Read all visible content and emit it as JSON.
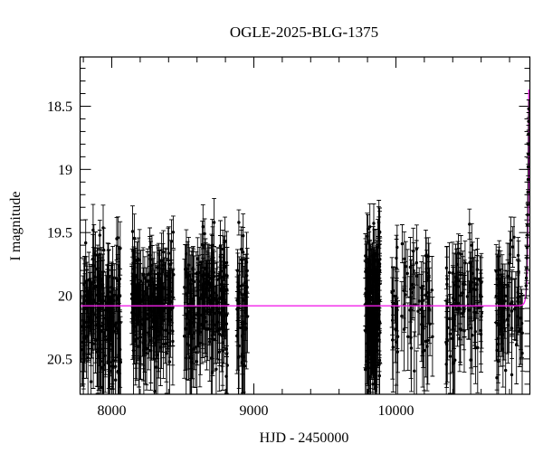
{
  "title": "OGLE-2025-BLG-1375",
  "chart_data": {
    "type": "scatter",
    "title": "OGLE-2025-BLG-1375",
    "xlabel": "HJD - 2450000",
    "ylabel": "I magnitude",
    "xlim": [
      7777,
      10943
    ],
    "ylim": [
      20.78,
      18.11
    ],
    "y_axis_inverted": true,
    "x_major_ticks": [
      8000,
      9000,
      10000
    ],
    "x_minor_step": 200,
    "y_major_ticks": [
      18.5,
      19,
      19.5,
      20,
      20.5
    ],
    "y_minor_step": 0.1,
    "grid": false,
    "legend": "none",
    "background_color": "#ffffff",
    "axis_color": "#000000",
    "point_color": "#000000",
    "model_color": "#f322ea",
    "model": {
      "description": "point-lens microlensing model: baseline, then steep rise at right edge",
      "baseline_mag": 20.08,
      "t0": 10936,
      "tE": 12,
      "u0": 0.21,
      "peak_mag": 18.38
    },
    "seasons": [
      {
        "name": "season-1",
        "hjd_min": 7780,
        "hjd_max": 8065,
        "n": 170,
        "mag_mean": 20.12,
        "mag_sd": 0.26
      },
      {
        "name": "season-2",
        "hjd_min": 8140,
        "hjd_max": 8435,
        "n": 190,
        "mag_mean": 20.1,
        "mag_sd": 0.25
      },
      {
        "name": "season-3",
        "hjd_min": 8510,
        "hjd_max": 8815,
        "n": 190,
        "mag_mean": 20.08,
        "mag_sd": 0.25
      },
      {
        "name": "season-4",
        "hjd_min": 8880,
        "hjd_max": 8955,
        "n": 42,
        "mag_mean": 20.1,
        "mag_sd": 0.3
      },
      {
        "name": "season-5",
        "hjd_min": 9785,
        "hjd_max": 9890,
        "n": 150,
        "mag_mean": 20.1,
        "mag_sd": 0.3
      },
      {
        "name": "season-6",
        "hjd_min": 9970,
        "hjd_max": 10260,
        "n": 72,
        "mag_mean": 20.12,
        "mag_sd": 0.26
      },
      {
        "name": "season-7",
        "hjd_min": 10350,
        "hjd_max": 10605,
        "n": 85,
        "mag_mean": 20.1,
        "mag_sd": 0.25
      },
      {
        "name": "season-8",
        "hjd_min": 10705,
        "hjd_max": 10895,
        "n": 68,
        "mag_mean": 20.1,
        "mag_sd": 0.26
      }
    ],
    "mag_clip": [
      19.42,
      21.1
    ],
    "event_points_columns": [
      "hjd",
      "mag",
      "err"
    ],
    "event_points": [
      [
        10916,
        19.92,
        0.1
      ],
      [
        10918,
        19.86,
        0.09
      ],
      [
        10920,
        19.78,
        0.1
      ],
      [
        10922,
        19.7,
        0.09
      ],
      [
        10923,
        19.62,
        0.08
      ],
      [
        10925,
        19.52,
        0.09
      ],
      [
        10926,
        19.44,
        0.08
      ],
      [
        10927,
        19.36,
        0.09
      ],
      [
        10928,
        19.28,
        0.08
      ],
      [
        10929,
        19.18,
        0.08
      ],
      [
        10930,
        19.08,
        0.08
      ],
      [
        10931,
        18.98,
        0.07
      ],
      [
        10932,
        18.88,
        0.08
      ],
      [
        10932.5,
        18.8,
        0.07
      ],
      [
        10933,
        18.72,
        0.07
      ],
      [
        10934,
        18.62,
        0.07
      ],
      [
        10935,
        18.52,
        0.07
      ]
    ],
    "seed": 7
  }
}
